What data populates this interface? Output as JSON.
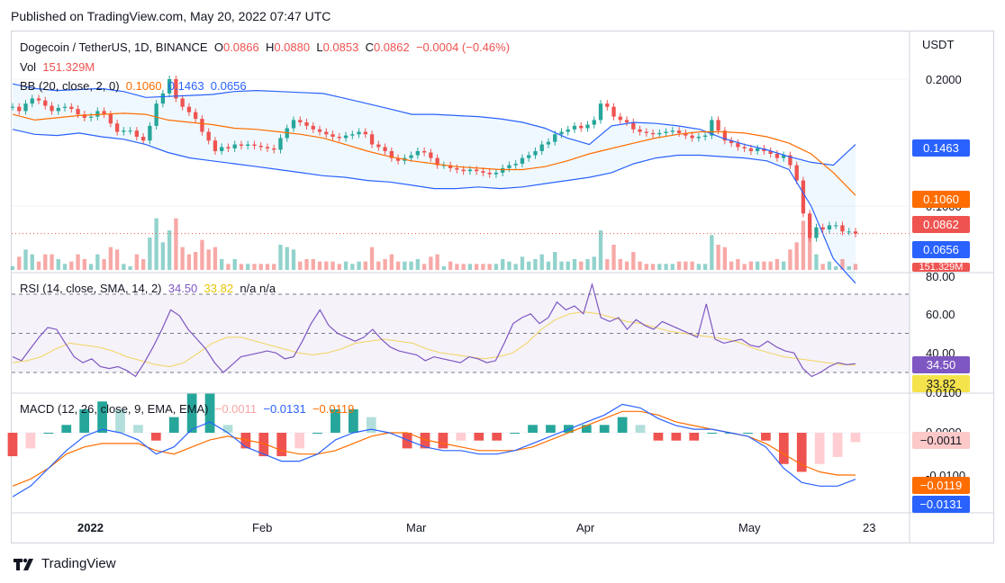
{
  "published": "Published on TradingView.com, May 20, 2022 07:47 UTC",
  "brand": "TradingView",
  "legend": {
    "symbol": "Dogecoin / TetherUS, 1D, BINANCE",
    "ohlc": {
      "o_label": "O",
      "o": "0.0866",
      "h_label": "H",
      "h": "0.0880",
      "l_label": "L",
      "l": "0.0853",
      "c_label": "C",
      "c": "0.0862",
      "chg": "−0.0004 (−0.46%)"
    },
    "vol_label": "Vol",
    "vol": "151.329M",
    "bb_label": "BB (20, close, 2, 0)",
    "bb_basis": "0.1060",
    "bb_upper": "0.1463",
    "bb_lower": "0.0656",
    "rsi_label": "RSI (14, close, SMA, 14, 2)",
    "rsi": "34.50",
    "rsi_ma": "33.82",
    "rsi_na": "n/a  n/a",
    "macd_label": "MACD (12, 26, close, 9, EMA, EMA)",
    "macd_hist": "−0.0011",
    "macd": "−0.0131",
    "macd_signal": "−0.0119"
  },
  "price_axis": {
    "unit": "USDT",
    "ticks": [
      "0.2000",
      "0.1000"
    ],
    "badges": {
      "upper": "0.1463",
      "basis": "0.1060",
      "close": "0.0862",
      "lower": "0.0656",
      "vol": "151.329M"
    }
  },
  "rsi_axis": {
    "ticks": [
      "80.00",
      "60.00",
      "40.00"
    ],
    "badges": {
      "rsi": "34.50",
      "ma": "33.82"
    }
  },
  "macd_axis": {
    "ticks": [
      "0.0100",
      "0.0000",
      "-0.0100"
    ],
    "badges": {
      "hist": "−0.0011",
      "signal": "−0.0119",
      "macd": "−0.0131"
    }
  },
  "time_axis": [
    "2022",
    "Feb",
    "Mar",
    "Apr",
    "May",
    "23"
  ],
  "colors": {
    "up": "#26a69a",
    "down": "#ef5350",
    "bb_line": "#2962ff",
    "bb_basis": "#ff6d00",
    "rsi": "#7e57c2",
    "rsi_ma": "#f2d45c",
    "macd": "#2962ff",
    "signal": "#ff6d00"
  },
  "chart_data": {
    "type": "line",
    "title": "Dogecoin / TetherUS, 1D, BINANCE",
    "x_range": [
      "2021-12-20",
      "2022-05-20"
    ],
    "price": {
      "close": [
        0.172,
        0.168,
        0.175,
        0.18,
        0.178,
        0.173,
        0.168,
        0.171,
        0.172,
        0.17,
        0.165,
        0.162,
        0.163,
        0.168,
        0.165,
        0.157,
        0.15,
        0.151,
        0.151,
        0.146,
        0.143,
        0.155,
        0.175,
        0.185,
        0.2,
        0.18,
        0.172,
        0.167,
        0.161,
        0.15,
        0.143,
        0.135,
        0.138,
        0.137,
        0.14,
        0.139,
        0.14,
        0.139,
        0.138,
        0.137,
        0.136,
        0.145,
        0.153,
        0.16,
        0.158,
        0.155,
        0.152,
        0.15,
        0.148,
        0.146,
        0.145,
        0.147,
        0.148,
        0.15,
        0.148,
        0.14,
        0.138,
        0.135,
        0.13,
        0.128,
        0.13,
        0.132,
        0.135,
        0.134,
        0.13,
        0.125,
        0.125,
        0.123,
        0.122,
        0.121,
        0.122,
        0.121,
        0.12,
        0.119,
        0.12,
        0.123,
        0.125,
        0.126,
        0.13,
        0.132,
        0.135,
        0.14,
        0.142,
        0.148,
        0.15,
        0.152,
        0.155,
        0.153,
        0.156,
        0.16,
        0.175,
        0.172,
        0.163,
        0.16,
        0.158,
        0.152,
        0.15,
        0.149,
        0.148,
        0.149,
        0.15,
        0.151,
        0.149,
        0.147,
        0.145,
        0.146,
        0.147,
        0.16,
        0.151,
        0.143,
        0.141,
        0.138,
        0.137,
        0.135,
        0.137,
        0.135,
        0.133,
        0.13,
        0.132,
        0.125,
        0.115,
        0.096,
        0.084,
        0.089,
        0.088,
        0.09,
        0.09,
        0.087,
        0.087,
        0.086
      ],
      "bb_upper": [
        0.195,
        0.19,
        0.188,
        0.189,
        0.19,
        0.187,
        0.181,
        0.182,
        0.183,
        0.184,
        0.187,
        0.188,
        0.187,
        0.186,
        0.185,
        0.18,
        0.175,
        0.17,
        0.165,
        0.165,
        0.164,
        0.163,
        0.161,
        0.158,
        0.153,
        0.145,
        0.14,
        0.155,
        0.158,
        0.157,
        0.155,
        0.152,
        0.145,
        0.14,
        0.136,
        0.131,
        0.127,
        0.125,
        0.14
      ],
      "bb_basis": [
        0.165,
        0.16,
        0.162,
        0.164,
        0.165,
        0.166,
        0.165,
        0.16,
        0.158,
        0.156,
        0.153,
        0.152,
        0.15,
        0.148,
        0.145,
        0.14,
        0.135,
        0.131,
        0.128,
        0.126,
        0.124,
        0.123,
        0.122,
        0.122,
        0.124,
        0.128,
        0.133,
        0.137,
        0.141,
        0.145,
        0.148,
        0.15,
        0.15,
        0.149,
        0.146,
        0.141,
        0.133,
        0.12,
        0.106
      ],
      "bb_lower": [
        0.152,
        0.148,
        0.147,
        0.149,
        0.146,
        0.144,
        0.14,
        0.134,
        0.13,
        0.128,
        0.126,
        0.124,
        0.122,
        0.12,
        0.118,
        0.117,
        0.115,
        0.114,
        0.112,
        0.11,
        0.11,
        0.111,
        0.11,
        0.111,
        0.113,
        0.115,
        0.117,
        0.12,
        0.126,
        0.13,
        0.132,
        0.132,
        0.131,
        0.13,
        0.128,
        0.122,
        0.1,
        0.075,
        0.0656
      ]
    },
    "rsi": {
      "values": [
        38,
        36,
        42,
        48,
        53,
        52,
        45,
        38,
        35,
        37,
        33,
        32,
        33,
        31,
        28,
        35,
        43,
        52,
        62,
        59,
        52,
        47,
        42,
        35,
        30,
        34,
        38,
        39,
        40,
        41,
        40,
        37,
        38,
        46,
        55,
        62,
        54,
        50,
        48,
        46,
        48,
        52,
        47,
        43,
        41,
        40,
        39,
        36,
        38,
        37,
        36,
        35,
        38,
        37,
        35,
        36,
        45,
        55,
        58,
        60,
        55,
        58,
        66,
        62,
        64,
        60,
        75,
        58,
        56,
        58,
        52,
        57,
        54,
        52,
        56,
        54,
        52,
        50,
        48,
        65,
        47,
        45,
        46,
        47,
        44,
        43,
        46,
        43,
        41,
        40,
        32,
        28,
        30,
        33,
        35,
        34,
        34.5
      ],
      "ma": [
        35,
        36,
        38,
        42,
        45,
        44,
        43,
        41,
        38,
        36,
        34,
        33,
        35,
        40,
        45,
        48,
        48,
        46,
        44,
        42,
        40,
        39,
        40,
        42,
        45,
        46,
        47,
        46,
        45,
        42,
        40,
        39,
        38,
        37,
        38,
        40,
        45,
        52,
        57,
        60,
        61,
        60,
        58,
        56,
        55,
        53,
        51,
        50,
        49,
        48,
        47,
        45,
        42,
        40,
        38,
        37,
        36,
        35,
        34,
        33.82
      ],
      "levels": [
        70,
        50,
        30
      ]
    },
    "macd": {
      "macd": [
        -0.018,
        -0.015,
        -0.01,
        -0.005,
        -0.001,
        0.001,
        0.0,
        -0.002,
        -0.006,
        -0.004,
        0.001,
        0.003,
        0.0,
        -0.004,
        -0.006,
        -0.008,
        -0.008,
        -0.006,
        -0.002,
        0.0,
        0.001,
        0.0,
        -0.002,
        -0.004,
        -0.005,
        -0.005,
        -0.006,
        -0.006,
        -0.005,
        -0.003,
        -0.001,
        0.001,
        0.003,
        0.005,
        0.008,
        0.007,
        0.004,
        0.002,
        0.001,
        0.001,
        0.0,
        -0.001,
        -0.004,
        -0.01,
        -0.014,
        -0.015,
        -0.015,
        -0.0131
      ],
      "signal": [
        -0.015,
        -0.013,
        -0.01,
        -0.006,
        -0.004,
        -0.003,
        -0.003,
        -0.003,
        -0.005,
        -0.006,
        -0.004,
        -0.002,
        -0.001,
        -0.002,
        -0.003,
        -0.005,
        -0.006,
        -0.006,
        -0.005,
        -0.003,
        -0.001,
        0.0,
        0.0,
        -0.002,
        -0.003,
        -0.004,
        -0.005,
        -0.005,
        -0.005,
        -0.004,
        -0.002,
        0.0,
        0.002,
        0.004,
        0.006,
        0.006,
        0.005,
        0.003,
        0.002,
        0.001,
        0.0,
        -0.001,
        -0.003,
        -0.006,
        -0.009,
        -0.011,
        -0.0119,
        -0.0119
      ]
    }
  }
}
